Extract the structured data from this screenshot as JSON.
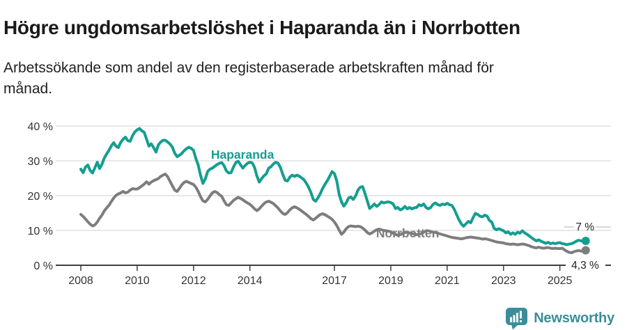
{
  "header": {
    "title": "Högre ungdomsarbetslöshet i Haparanda än i Norrbotten",
    "subtitle": "Arbetssökande som andel av den registerbaserade arbetskraften månad för månad."
  },
  "footer": {
    "brand": "Newsworthy",
    "logo_icon": "speech-bubble-bar-chart-icon",
    "brand_color": "#3a8e99"
  },
  "colors": {
    "accent_teal": "#149e90",
    "line_gray": "#7d7d7d",
    "axis_text": "#333333",
    "gridline": "#d9d9d9",
    "axis_line": "#3d3d3d",
    "end_label_text": "#222222",
    "end_label_dash": "#cccccc"
  },
  "chart_data": {
    "type": "line",
    "title": "Högre ungdomsarbetslöshet i Haparanda än i Norrbotten",
    "subtitle": "Arbetssökande som andel av den registerbaserade arbetskraften månad för månad.",
    "x_unit": "month",
    "x_start_year": 2008,
    "x_end": "2025-12",
    "grid": true,
    "legend_position": "inline-labels",
    "x_axis": {
      "ticks": [
        2008,
        2010,
        2012,
        2014,
        2017,
        2019,
        2021,
        2023,
        2025
      ]
    },
    "y_axis": {
      "ticks": [
        0,
        10,
        20,
        30,
        40
      ],
      "suffix": " %",
      "ylim": [
        0,
        42
      ]
    },
    "series": [
      {
        "name": "Haparanda",
        "color": "#149e90",
        "end_label": "7 %",
        "end_label_style": "above",
        "label_anchor": {
          "x_year": 2012.62,
          "y_value": 30.6
        },
        "values": [
          27.6,
          26.6,
          28.2,
          28.8,
          27.2,
          26.5,
          28.0,
          29.6,
          27.8,
          29.0,
          30.8,
          32.0,
          33.0,
          34.3,
          35.2,
          34.2,
          33.8,
          35.3,
          36.2,
          36.8,
          35.8,
          35.6,
          37.2,
          38.3,
          38.9,
          39.3,
          38.6,
          38.2,
          36.2,
          34.2,
          34.9,
          33.8,
          32.5,
          34.5,
          35.4,
          35.9,
          35.9,
          35.4,
          34.8,
          33.9,
          32.2,
          31.2,
          31.6,
          32.1,
          32.9,
          33.5,
          33.9,
          33.6,
          33.0,
          30.6,
          28.8,
          25.8,
          23.5,
          24.8,
          26.9,
          27.6,
          27.9,
          28.4,
          28.9,
          29.3,
          29.5,
          28.6,
          27.1,
          26.5,
          26.6,
          28.2,
          29.5,
          29.9,
          28.9,
          27.9,
          28.7,
          29.3,
          29.6,
          29.4,
          28.1,
          25.6,
          23.9,
          24.9,
          25.7,
          26.3,
          27.9,
          28.3,
          29.1,
          29.6,
          29.3,
          28.1,
          26.1,
          24.4,
          24.2,
          25.3,
          25.9,
          25.5,
          25.9,
          25.6,
          25.1,
          24.6,
          23.6,
          22.4,
          20.9,
          18.9,
          18.4,
          19.4,
          20.6,
          22.1,
          23.3,
          24.3,
          25.6,
          26.9,
          26.3,
          24.2,
          20.4,
          18.2,
          17.0,
          17.9,
          19.3,
          19.6,
          18.9,
          19.9,
          21.6,
          22.4,
          22.6,
          20.6,
          18.5,
          16.3,
          16.9,
          17.6,
          16.9,
          17.4,
          18.2,
          17.9,
          18.1,
          18.2,
          18.0,
          17.6,
          16.3,
          16.6,
          15.9,
          16.2,
          16.9,
          16.2,
          16.6,
          16.2,
          16.5,
          16.6,
          17.4,
          17.1,
          17.6,
          16.6,
          16.2,
          16.6,
          17.5,
          17.9,
          17.4,
          17.2,
          17.6,
          17.4,
          17.8,
          17.4,
          17.2,
          16.1,
          14.6,
          13.1,
          11.9,
          11.2,
          11.9,
          12.6,
          12.2,
          13.6,
          14.9,
          14.6,
          14.1,
          13.9,
          14.4,
          14.1,
          12.9,
          12.4,
          10.6,
          10.2,
          10.5,
          10.2,
          9.9,
          9.3,
          9.6,
          8.9,
          9.3,
          8.9,
          9.5,
          9.2,
          9.9,
          9.3,
          8.9,
          8.4,
          7.9,
          7.4,
          7.0,
          7.3,
          6.9,
          6.6,
          6.3,
          6.6,
          6.2,
          6.4,
          6.2,
          6.4,
          6.5,
          6.2,
          6.1,
          5.9,
          6.1,
          6.2,
          6.5,
          6.9,
          7.2,
          7.0,
          6.9,
          7.0
        ]
      },
      {
        "name": "Norrbotten",
        "color": "#7d7d7d",
        "end_label": "4,3 %",
        "end_label_style": "on-axis",
        "label_anchor": {
          "x_year": 2018.48,
          "y_value": 8.0
        },
        "values": [
          14.6,
          14.0,
          13.3,
          12.5,
          11.8,
          11.3,
          11.6,
          12.4,
          13.5,
          14.4,
          15.6,
          16.5,
          17.2,
          18.3,
          19.3,
          20.1,
          20.5,
          20.8,
          21.2,
          20.8,
          21.0,
          21.6,
          22.0,
          21.9,
          21.9,
          22.3,
          22.8,
          23.3,
          24.0,
          23.3,
          23.9,
          24.3,
          24.6,
          24.9,
          25.5,
          25.9,
          26.2,
          25.4,
          24.1,
          22.8,
          21.6,
          21.2,
          22.1,
          23.1,
          23.8,
          24.1,
          23.8,
          23.5,
          23.2,
          22.4,
          21.2,
          19.7,
          18.5,
          18.2,
          18.9,
          19.9,
          20.8,
          21.2,
          20.9,
          20.3,
          19.8,
          18.5,
          17.4,
          17.2,
          17.9,
          18.6,
          19.1,
          19.5,
          19.2,
          18.8,
          18.3,
          17.9,
          17.5,
          16.9,
          16.2,
          15.7,
          16.2,
          17.0,
          17.7,
          18.2,
          18.4,
          18.1,
          17.7,
          17.1,
          16.4,
          15.6,
          14.9,
          14.6,
          15.1,
          15.9,
          16.5,
          16.8,
          16.5,
          16.1,
          15.6,
          15.1,
          14.6,
          14.0,
          13.4,
          13.0,
          13.5,
          14.1,
          14.6,
          14.8,
          14.5,
          14.1,
          13.7,
          13.2,
          12.4,
          11.4,
          10.1,
          8.9,
          9.5,
          10.5,
          11.1,
          11.3,
          11.2,
          11.1,
          11.2,
          11.1,
          10.7,
          10.1,
          9.4,
          9.0,
          9.3,
          9.8,
          10.2,
          10.4,
          10.2,
          10.0,
          9.9,
          9.8,
          9.6,
          9.2,
          8.9,
          8.6,
          8.8,
          9.1,
          9.4,
          9.5,
          9.3,
          9.1,
          8.9,
          8.8,
          8.9,
          9.1,
          9.5,
          9.9,
          9.9,
          9.7,
          9.5,
          9.4,
          9.2,
          9.0,
          8.8,
          8.6,
          8.4,
          8.2,
          8.0,
          7.9,
          7.8,
          7.7,
          7.6,
          7.7,
          7.9,
          8.0,
          8.1,
          8.0,
          7.9,
          7.8,
          7.7,
          7.5,
          7.6,
          7.5,
          7.3,
          7.1,
          6.9,
          6.7,
          6.6,
          6.5,
          6.4,
          6.2,
          6.1,
          6.0,
          6.1,
          6.0,
          5.9,
          6.0,
          6.1,
          6.0,
          5.8,
          5.6,
          5.3,
          5.1,
          5.0,
          5.2,
          5.0,
          4.9,
          5.0,
          5.1,
          4.9,
          4.8,
          4.9,
          4.8,
          4.8,
          4.9,
          4.4,
          4.0,
          3.7,
          3.6,
          3.9,
          4.1,
          4.2,
          4.1,
          4.0,
          4.3
        ]
      }
    ]
  }
}
